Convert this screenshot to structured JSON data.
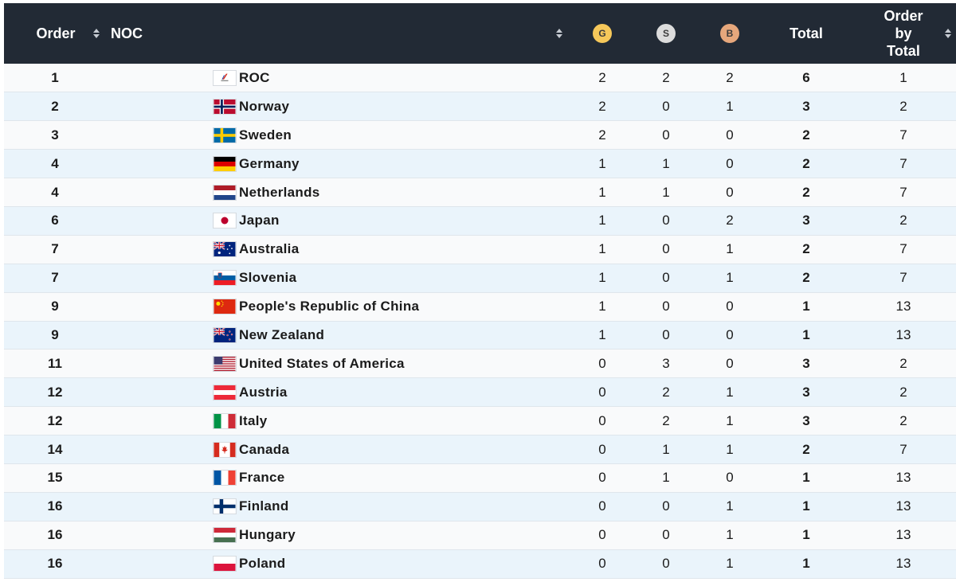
{
  "header": {
    "order": "Order",
    "noc": "NOC",
    "gold": "G",
    "silver": "S",
    "bronze": "B",
    "total": "Total",
    "order_by_total": [
      "Order",
      "by",
      "Total"
    ]
  },
  "colors": {
    "header_bg": "#222a35",
    "row_odd": "#f9fafb",
    "row_even": "#eaf4fb",
    "gold": "#f6c85a",
    "silver": "#dcdcdc",
    "bronze": "#e6a77c"
  },
  "rows": [
    {
      "rank": "1",
      "flag": "roc-flag-icon",
      "country": "ROC",
      "gold": "2",
      "silver": "2",
      "bronze": "2",
      "total": "6",
      "order_by_total": "1"
    },
    {
      "rank": "2",
      "flag": "norway-flag-icon",
      "country": "Norway",
      "gold": "2",
      "silver": "0",
      "bronze": "1",
      "total": "3",
      "order_by_total": "2"
    },
    {
      "rank": "3",
      "flag": "sweden-flag-icon",
      "country": "Sweden",
      "gold": "2",
      "silver": "0",
      "bronze": "0",
      "total": "2",
      "order_by_total": "7"
    },
    {
      "rank": "4",
      "flag": "germany-flag-icon",
      "country": "Germany",
      "gold": "1",
      "silver": "1",
      "bronze": "0",
      "total": "2",
      "order_by_total": "7"
    },
    {
      "rank": "4",
      "flag": "netherlands-flag-icon",
      "country": "Netherlands",
      "gold": "1",
      "silver": "1",
      "bronze": "0",
      "total": "2",
      "order_by_total": "7"
    },
    {
      "rank": "6",
      "flag": "japan-flag-icon",
      "country": "Japan",
      "gold": "1",
      "silver": "0",
      "bronze": "2",
      "total": "3",
      "order_by_total": "2"
    },
    {
      "rank": "7",
      "flag": "australia-flag-icon",
      "country": "Australia",
      "gold": "1",
      "silver": "0",
      "bronze": "1",
      "total": "2",
      "order_by_total": "7"
    },
    {
      "rank": "7",
      "flag": "slovenia-flag-icon",
      "country": "Slovenia",
      "gold": "1",
      "silver": "0",
      "bronze": "1",
      "total": "2",
      "order_by_total": "7"
    },
    {
      "rank": "9",
      "flag": "china-flag-icon",
      "country": "People's Republic of China",
      "gold": "1",
      "silver": "0",
      "bronze": "0",
      "total": "1",
      "order_by_total": "13"
    },
    {
      "rank": "9",
      "flag": "new-zealand-flag-icon",
      "country": "New Zealand",
      "gold": "1",
      "silver": "0",
      "bronze": "0",
      "total": "1",
      "order_by_total": "13"
    },
    {
      "rank": "11",
      "flag": "usa-flag-icon",
      "country": "United States of America",
      "gold": "0",
      "silver": "3",
      "bronze": "0",
      "total": "3",
      "order_by_total": "2"
    },
    {
      "rank": "12",
      "flag": "austria-flag-icon",
      "country": "Austria",
      "gold": "0",
      "silver": "2",
      "bronze": "1",
      "total": "3",
      "order_by_total": "2"
    },
    {
      "rank": "12",
      "flag": "italy-flag-icon",
      "country": "Italy",
      "gold": "0",
      "silver": "2",
      "bronze": "1",
      "total": "3",
      "order_by_total": "2"
    },
    {
      "rank": "14",
      "flag": "canada-flag-icon",
      "country": "Canada",
      "gold": "0",
      "silver": "1",
      "bronze": "1",
      "total": "2",
      "order_by_total": "7"
    },
    {
      "rank": "15",
      "flag": "france-flag-icon",
      "country": "France",
      "gold": "0",
      "silver": "1",
      "bronze": "0",
      "total": "1",
      "order_by_total": "13"
    },
    {
      "rank": "16",
      "flag": "finland-flag-icon",
      "country": "Finland",
      "gold": "0",
      "silver": "0",
      "bronze": "1",
      "total": "1",
      "order_by_total": "13"
    },
    {
      "rank": "16",
      "flag": "hungary-flag-icon",
      "country": "Hungary",
      "gold": "0",
      "silver": "0",
      "bronze": "1",
      "total": "1",
      "order_by_total": "13"
    },
    {
      "rank": "16",
      "flag": "poland-flag-icon",
      "country": "Poland",
      "gold": "0",
      "silver": "0",
      "bronze": "1",
      "total": "1",
      "order_by_total": "13"
    }
  ]
}
